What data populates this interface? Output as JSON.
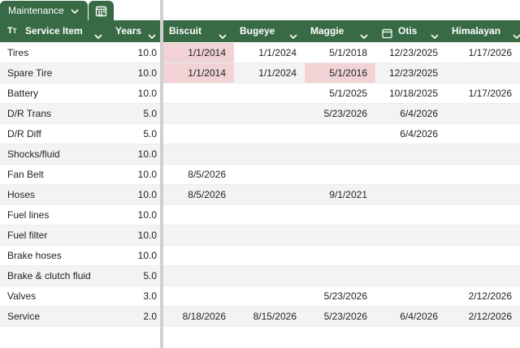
{
  "tabs": {
    "active": "Maintenance"
  },
  "table": {
    "highlight_color": "#f1d3d5",
    "columns": [
      "Service Item",
      "Years",
      "Biscuit",
      "Bugeye",
      "Maggie",
      "Otis",
      "Himalayan"
    ],
    "rows": [
      [
        "Tires",
        "10.0",
        {
          "text": "1/1/2014",
          "highlight": true
        },
        "1/1/2024",
        "5/1/2018",
        "12/23/2025",
        "1/17/2026"
      ],
      [
        "Spare Tire",
        "10.0",
        {
          "text": "1/1/2014",
          "highlight": true
        },
        "1/1/2024",
        {
          "text": "5/1/2016",
          "highlight": true
        },
        "12/23/2025",
        null
      ],
      [
        "Battery",
        "10.0",
        null,
        null,
        "5/1/2025",
        "10/18/2025",
        "1/17/2026"
      ],
      [
        "D/R Trans",
        "5.0",
        null,
        null,
        "5/23/2026",
        "6/4/2026",
        null
      ],
      [
        "D/R Diff",
        "5.0",
        null,
        null,
        null,
        "6/4/2026",
        null
      ],
      [
        "Shocks/fluid",
        "10.0",
        null,
        null,
        null,
        null,
        null
      ],
      [
        "Fan Belt",
        "10.0",
        "8/5/2026",
        null,
        null,
        null,
        null
      ],
      [
        "Hoses",
        "10.0",
        "8/5/2026",
        null,
        "9/1/2021",
        null,
        null
      ],
      [
        "Fuel lines",
        "10.0",
        null,
        null,
        null,
        null,
        null
      ],
      [
        "Fuel filter",
        "10.0",
        null,
        null,
        null,
        null,
        null
      ],
      [
        "Brake hoses",
        "10.0",
        null,
        null,
        null,
        null,
        null
      ],
      [
        "Brake & clutch fluid",
        "5.0",
        null,
        null,
        null,
        null,
        null
      ],
      [
        "Valves",
        "3.0",
        null,
        null,
        "5/23/2026",
        null,
        "2/12/2026"
      ],
      [
        "Service",
        "2.0",
        "8/18/2026",
        "8/15/2026",
        "5/23/2026",
        "6/4/2026",
        "2/12/2026"
      ]
    ]
  }
}
